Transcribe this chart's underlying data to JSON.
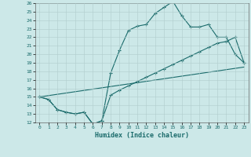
{
  "xlabel": "Humidex (Indice chaleur)",
  "xlim": [
    -0.5,
    23.5
  ],
  "ylim": [
    12,
    26
  ],
  "xticks": [
    0,
    1,
    2,
    3,
    4,
    5,
    6,
    7,
    8,
    9,
    10,
    11,
    12,
    13,
    14,
    15,
    16,
    17,
    18,
    19,
    20,
    21,
    22,
    23
  ],
  "yticks": [
    12,
    13,
    14,
    15,
    16,
    17,
    18,
    19,
    20,
    21,
    22,
    23,
    24,
    25,
    26
  ],
  "background_color": "#cce8e8",
  "grid_color": "#b0cccc",
  "line_color": "#1a6b6b",
  "line1_x": [
    0,
    1,
    2,
    3,
    4,
    5,
    6,
    7,
    8,
    9,
    10,
    11,
    12,
    13,
    14,
    15,
    16,
    17,
    18,
    19,
    20,
    21,
    22,
    23
  ],
  "line1_y": [
    15.0,
    14.7,
    13.5,
    13.2,
    13.0,
    13.2,
    11.8,
    12.2,
    17.8,
    20.5,
    22.8,
    23.3,
    23.5,
    24.8,
    25.5,
    26.2,
    24.5,
    23.2,
    23.2,
    23.5,
    22.0,
    22.0,
    20.0,
    19.0
  ],
  "line2_x": [
    0,
    1,
    2,
    3,
    4,
    5,
    6,
    7,
    8,
    9,
    10,
    11,
    12,
    13,
    14,
    15,
    16,
    17,
    18,
    19,
    20,
    21,
    22,
    23
  ],
  "line2_y": [
    15.0,
    14.7,
    13.5,
    13.2,
    13.0,
    13.2,
    11.8,
    12.2,
    15.2,
    15.8,
    16.3,
    16.8,
    17.3,
    17.8,
    18.3,
    18.8,
    19.3,
    19.8,
    20.3,
    20.8,
    21.3,
    21.5,
    22.0,
    19.0
  ],
  "line3_x": [
    0,
    23
  ],
  "line3_y": [
    15.0,
    18.5
  ]
}
